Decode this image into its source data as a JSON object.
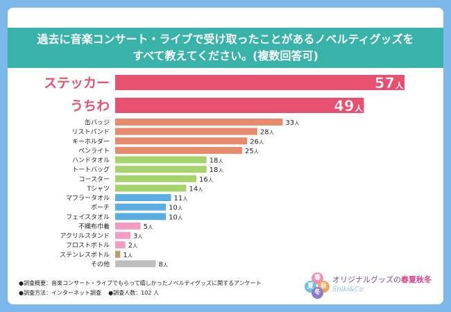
{
  "title_line1": "過去に音楽コンサート・ライブで受け取ったことがあるノベルティグッズを",
  "title_line2": "すべて教えてください。(複数回答可)",
  "unit": "人",
  "footer_line1": "●調査概要：音楽コンサート・ライブでもらって嬉しかったノベルティグッズに関するアンケート",
  "footer_line2a": "●調査方法：インターネット調査",
  "footer_line2b": "●調査人数：102 人",
  "logo_text_a": "オリジナルグッズの",
  "logo_text_b": "春夏秋冬",
  "logo_sub": "Shiki&Co",
  "logo_emblem": [
    "春",
    "夏",
    "秋",
    "冬"
  ],
  "colors": {
    "top": "#e8506f",
    "orange": "#e88a6c",
    "green": "#a6d46b",
    "blue": "#5aaee2",
    "pink": "#f59ac0",
    "brown": "#c19a6b",
    "gray": "#bdbdbd"
  },
  "chart_data": {
    "type": "bar",
    "orientation": "horizontal",
    "categories": [
      "ステッカー",
      "うちわ",
      "缶バッジ",
      "リストバンド",
      "キーホルダー",
      "ペンライト",
      "ハンドタオル",
      "トートバッグ",
      "コースター",
      "Tシャツ",
      "マフラータオル",
      "ポーチ",
      "フェイスタオル",
      "不織布巾着",
      "アクリルスタンド",
      "フロストボトル",
      "ステンレスボトル",
      "その他"
    ],
    "values": [
      57,
      49,
      33,
      28,
      26,
      25,
      18,
      18,
      16,
      14,
      11,
      10,
      10,
      5,
      3,
      2,
      1,
      8
    ],
    "bar_colors": [
      "top",
      "top",
      "orange",
      "orange",
      "orange",
      "orange",
      "green",
      "green",
      "green",
      "green",
      "blue",
      "blue",
      "blue",
      "pink",
      "pink",
      "pink",
      "brown",
      "gray"
    ],
    "xlim": [
      0,
      57
    ],
    "grid": false,
    "legend": "none"
  }
}
